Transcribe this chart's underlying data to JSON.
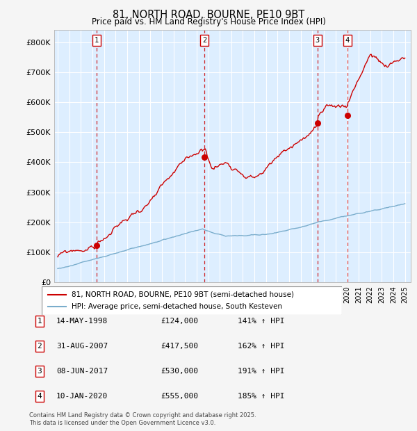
{
  "title": "81, NORTH ROAD, BOURNE, PE10 9BT",
  "subtitle": "Price paid vs. HM Land Registry's House Price Index (HPI)",
  "legend_entries": [
    "81, NORTH ROAD, BOURNE, PE10 9BT (semi-detached house)",
    "HPI: Average price, semi-detached house, South Kesteven"
  ],
  "sale_labels": [
    {
      "num": 1,
      "date": "14-MAY-1998",
      "price": "£124,000",
      "pct": "141% ↑ HPI",
      "year": 1998.37
    },
    {
      "num": 2,
      "date": "31-AUG-2007",
      "price": "£417,500",
      "pct": "162% ↑ HPI",
      "year": 2007.67
    },
    {
      "num": 3,
      "date": "08-JUN-2017",
      "price": "£530,000",
      "pct": "191% ↑ HPI",
      "year": 2017.44
    },
    {
      "num": 4,
      "date": "10-JAN-2020",
      "price": "£555,000",
      "pct": "185% ↑ HPI",
      "year": 2020.03
    }
  ],
  "sale_prices": [
    124000,
    417500,
    530000,
    555000
  ],
  "footer": "Contains HM Land Registry data © Crown copyright and database right 2025.\nThis data is licensed under the Open Government Licence v3.0.",
  "ylim": [
    0,
    840000
  ],
  "xlim_start": 1994.7,
  "xlim_end": 2025.5,
  "red_color": "#cc0000",
  "blue_color": "#7aadcc",
  "plot_bg_color": "#ddeeff",
  "fig_bg_color": "#f5f5f5",
  "grid_color": "#ffffff",
  "yticks": [
    0,
    100000,
    200000,
    300000,
    400000,
    500000,
    600000,
    700000,
    800000
  ]
}
